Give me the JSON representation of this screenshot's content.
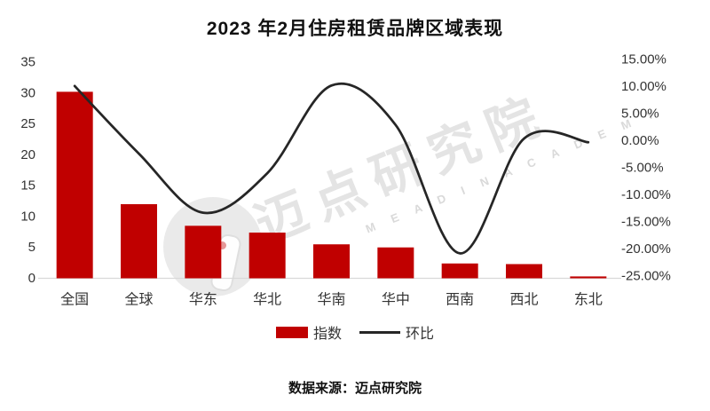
{
  "title": "2023 年2月住房租赁品牌区域表现",
  "footer": {
    "source": "数据来源：迈点研究院"
  },
  "watermark": {
    "cn": "迈点研究院",
    "en": "M E A D I N  A C A D E M Y"
  },
  "colors": {
    "bar": "#c00000",
    "line": "#262626",
    "axis_line": "#d9d9d9",
    "tick_text": "#333333"
  },
  "chart_data": {
    "type": "bar",
    "subtype": "combo-bar-line-dual-axis",
    "title": "2023 年2月住房租赁品牌区域表现",
    "categories": [
      "全国",
      "全球",
      "华东",
      "华北",
      "华南",
      "华中",
      "西南",
      "西北",
      "东北"
    ],
    "series": [
      {
        "name": "指数",
        "type": "bar",
        "axis": "left",
        "color": "#c00000",
        "values": [
          30.2,
          12.0,
          8.5,
          7.4,
          5.5,
          5.0,
          2.4,
          2.3,
          0.3
        ]
      },
      {
        "name": "环比",
        "type": "line",
        "axis": "right",
        "color": "#262626",
        "smooth": true,
        "values_pct": [
          10.1,
          -2.4,
          -13.3,
          -6.0,
          10.2,
          2.9,
          -20.8,
          0.4,
          -0.3
        ]
      }
    ],
    "left_axis": {
      "min": 0,
      "max": 35,
      "tick_labels": [
        "35",
        "30",
        "25",
        "20",
        "15",
        "10",
        "5",
        "0"
      ],
      "tick_values": [
        35,
        30,
        25,
        20,
        15,
        10,
        5,
        0
      ]
    },
    "right_axis": {
      "min_pct": -25,
      "max_pct": 15,
      "tick_labels": [
        "15.00%",
        "10.00%",
        "5.00%",
        "0.00%",
        "-5.00%",
        "-10.00%",
        "-15.00%",
        "-20.00%",
        "-25.00%"
      ],
      "tick_values": [
        15,
        10,
        5,
        0,
        -5,
        -10,
        -15,
        -20,
        -25
      ]
    },
    "legend_position": "bottom",
    "grid": false,
    "xlabel": "",
    "ylabel_left": "",
    "ylabel_right": ""
  }
}
